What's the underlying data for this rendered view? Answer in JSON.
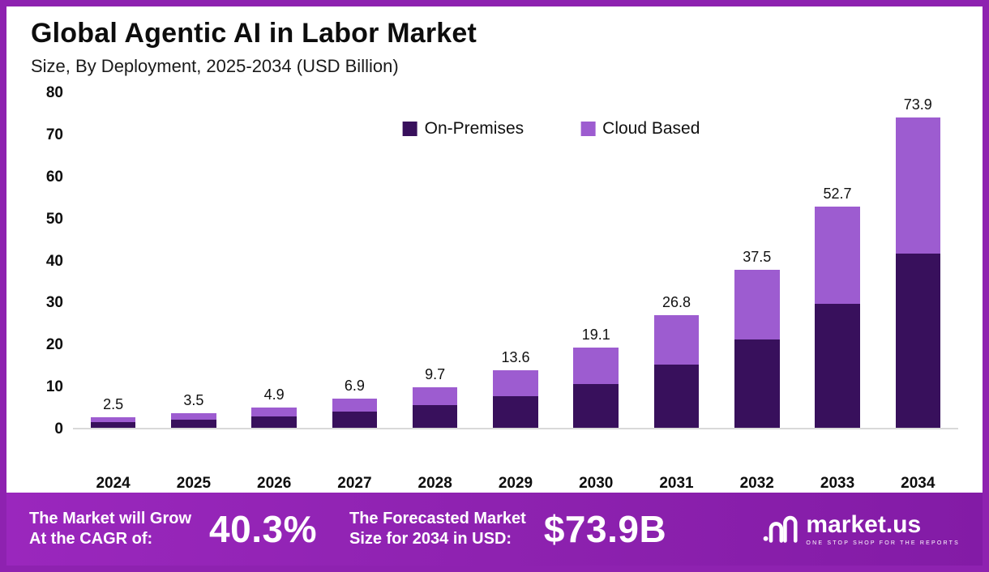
{
  "title": "Global Agentic AI in Labor Market",
  "subtitle": "Size, By Deployment, 2025-2034 (USD Billion)",
  "chart_data": {
    "type": "bar",
    "stacked": true,
    "title": "Global Agentic AI in Labor Market",
    "subtitle": "Size, By Deployment, 2025-2034 (USD Billion)",
    "xlabel": "",
    "ylabel": "",
    "categories": [
      "2024",
      "2025",
      "2026",
      "2027",
      "2028",
      "2029",
      "2030",
      "2031",
      "2032",
      "2033",
      "2034"
    ],
    "series": [
      {
        "name": "On-Premises",
        "color": "#38105c",
        "values": [
          1.4,
          2.0,
          2.7,
          3.9,
          5.4,
          7.6,
          10.5,
          15.0,
          21.0,
          29.5,
          41.4
        ]
      },
      {
        "name": "Cloud Based",
        "color": "#9d5cd0",
        "values": [
          1.1,
          1.5,
          2.2,
          3.0,
          4.3,
          6.0,
          8.6,
          11.8,
          16.5,
          23.2,
          32.5
        ]
      }
    ],
    "totals": [
      2.5,
      3.5,
      4.9,
      6.9,
      9.7,
      13.6,
      19.1,
      26.8,
      37.5,
      52.7,
      73.9
    ],
    "ylim": [
      0,
      80
    ],
    "ytick_step": 10,
    "grid": false,
    "legend_position": "top-center-inside"
  },
  "footer": {
    "cagr_label": "The Market will Grow\nAt the CAGR of:",
    "cagr_value": "40.3%",
    "forecast_label": "The Forecasted Market\nSize for 2034 in USD:",
    "forecast_value": "$73.9B",
    "brand": "market.us",
    "brand_tagline": "One Stop Shop For The Reports"
  },
  "colors": {
    "on_premises": "#38105c",
    "cloud_based": "#9d5cd0",
    "banner": "#8e22b0",
    "frame": "#8e22b0",
    "axis_line": "#d9d9d9",
    "text": "#111111"
  }
}
